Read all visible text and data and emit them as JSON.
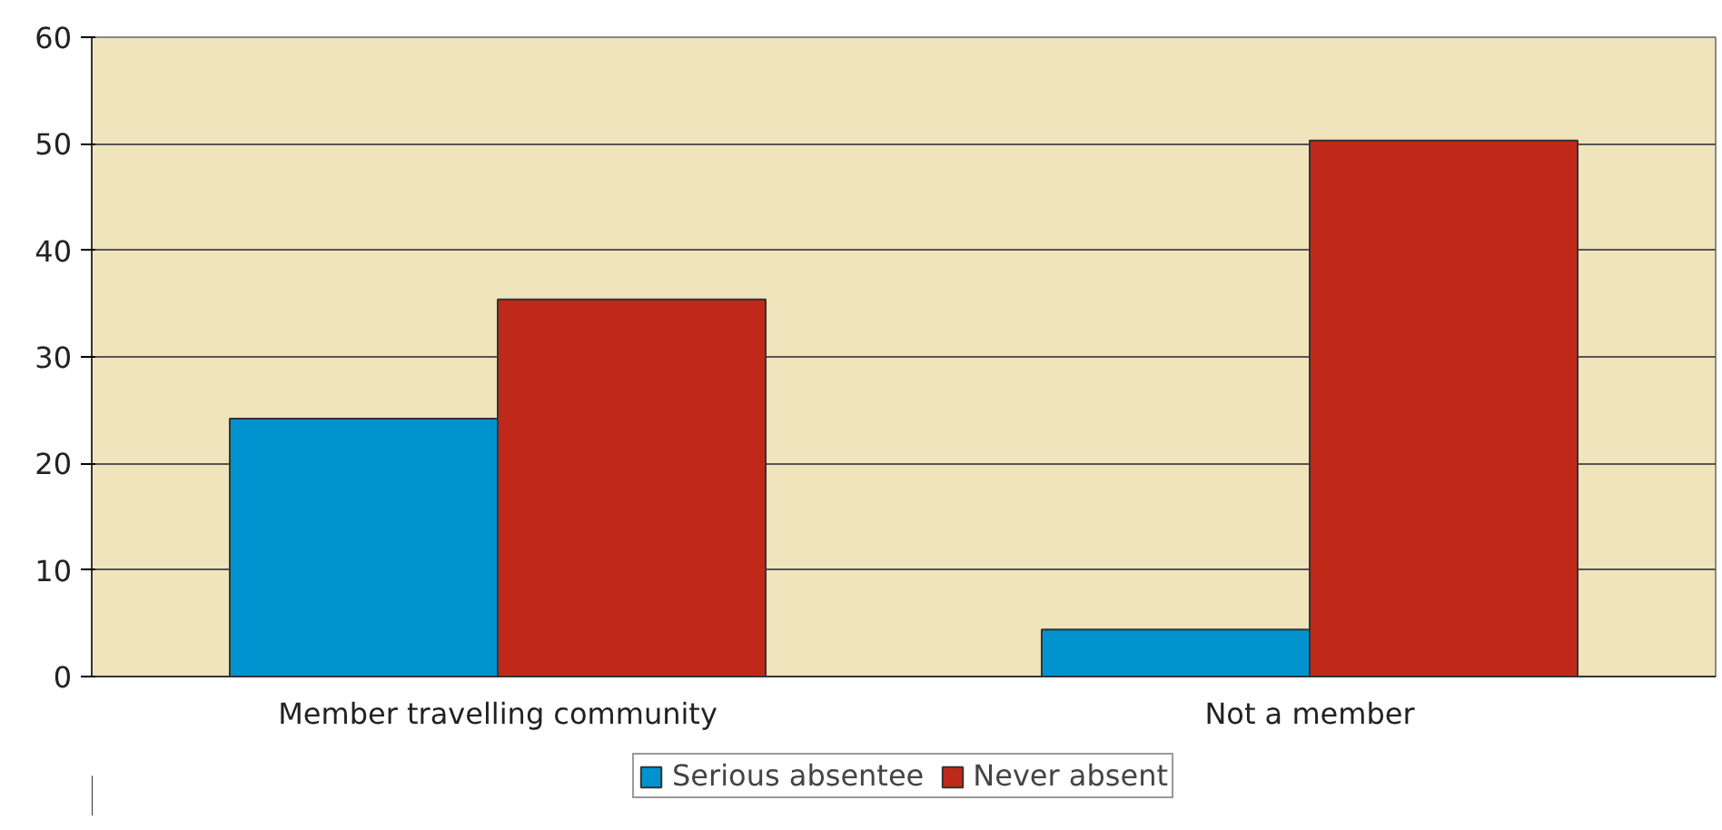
{
  "chart_data": {
    "type": "bar",
    "categories": [
      "Member travelling community",
      "Not a member"
    ],
    "series": [
      {
        "name": "Serious absentee",
        "color": "#0093d0",
        "values": [
          24.2,
          4.4
        ]
      },
      {
        "name": "Never absent",
        "color": "#c0291a",
        "values": [
          35.4,
          50.3
        ]
      }
    ],
    "ylim": [
      0,
      60
    ],
    "yticks": [
      0,
      10,
      20,
      30,
      40,
      50,
      60
    ],
    "grid": "y",
    "legend": "bottom"
  }
}
